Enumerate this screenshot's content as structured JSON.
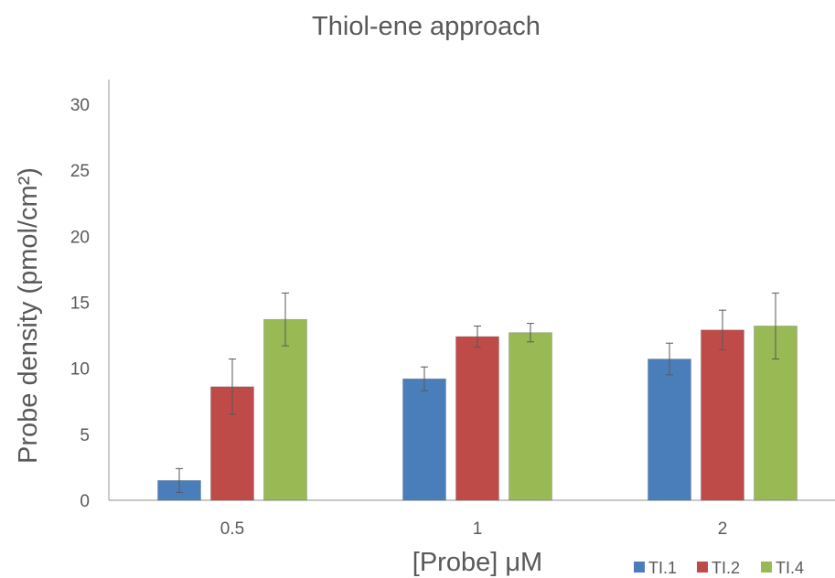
{
  "chart_data": {
    "type": "bar",
    "title": "Thiol-ene approach",
    "xlabel": "[Probe] μM",
    "ylabel": "Probe density (pmol/cm²)",
    "categories": [
      "0.5",
      "1",
      "2"
    ],
    "ylim": [
      0,
      30
    ],
    "yticks": [
      0,
      5,
      10,
      15,
      20,
      25,
      30
    ],
    "grid": false,
    "legend_position": "bottom-right",
    "series": [
      {
        "name": "TI.1",
        "color": "#4a7ebb",
        "values": [
          1.5,
          9.2,
          10.7
        ],
        "errors": [
          0.9,
          0.9,
          1.2
        ]
      },
      {
        "name": "TI.2",
        "color": "#be4b48",
        "values": [
          8.6,
          12.4,
          12.9
        ],
        "errors": [
          2.1,
          0.8,
          1.5
        ]
      },
      {
        "name": "TI.4",
        "color": "#98b954",
        "values": [
          13.7,
          12.7,
          13.2
        ],
        "errors": [
          2.0,
          0.7,
          2.5
        ]
      }
    ]
  }
}
